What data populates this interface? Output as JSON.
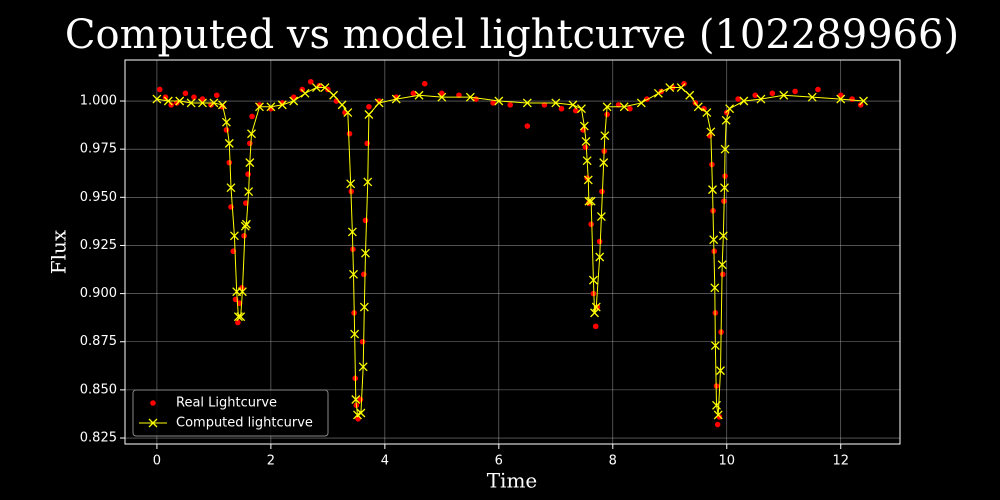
{
  "chart_data": {
    "type": "line",
    "title": "Computed vs model lightcurve (102289966)",
    "xlabel": "Time",
    "ylabel": "Flux",
    "xlim": [
      -0.56,
      13.04
    ],
    "ylim": [
      0.8219,
      1.0213
    ],
    "xticks": [
      0,
      2,
      4,
      6,
      8,
      10,
      12
    ],
    "yticks": [
      0.825,
      {
        "value": 0.85,
        "label": "0.850"
      },
      0.875,
      {
        "value": 0.9,
        "label": "0.900"
      },
      0.925,
      {
        "value": 0.95,
        "label": "0.950"
      },
      0.975,
      {
        "value": 1.0,
        "label": "1.000"
      }
    ],
    "grid": true,
    "legend": "lower left",
    "series": [
      {
        "name": "Real Lightcurve",
        "color": "#ff0000",
        "mode": "markers",
        "x": [
          0.05,
          0.15,
          0.25,
          0.35,
          0.5,
          0.65,
          0.8,
          0.95,
          1.05,
          1.15,
          1.22,
          1.27,
          1.3,
          1.34,
          1.38,
          1.42,
          1.45,
          1.49,
          1.53,
          1.56,
          1.6,
          1.63,
          1.67,
          1.8,
          2.0,
          2.2,
          2.4,
          2.55,
          2.7,
          2.85,
          3.0,
          3.15,
          3.3,
          3.38,
          3.41,
          3.44,
          3.46,
          3.48,
          3.5,
          3.53,
          3.57,
          3.61,
          3.63,
          3.66,
          3.69,
          3.72,
          3.9,
          4.2,
          4.5,
          4.7,
          5.0,
          5.3,
          5.6,
          5.9,
          6.2,
          6.5,
          6.8,
          7.1,
          7.35,
          7.48,
          7.52,
          7.55,
          7.58,
          7.62,
          7.66,
          7.7,
          7.73,
          7.77,
          7.81,
          7.85,
          7.9,
          8.1,
          8.3,
          8.6,
          8.85,
          9.05,
          9.25,
          9.45,
          9.6,
          9.7,
          9.74,
          9.76,
          9.78,
          9.8,
          9.82,
          9.84,
          9.87,
          9.9,
          9.93,
          9.95,
          9.97,
          10.0,
          10.2,
          10.5,
          10.8,
          11.2,
          11.6,
          12.0,
          12.2,
          12.35
        ],
        "values": [
          1.006,
          1.002,
          0.998,
          0.999,
          1.004,
          1.002,
          1.001,
          0.998,
          1.003,
          0.997,
          0.985,
          0.968,
          0.945,
          0.922,
          0.897,
          0.885,
          0.895,
          0.903,
          0.93,
          0.947,
          0.962,
          0.978,
          0.992,
          0.998,
          0.996,
          0.999,
          1.002,
          1.006,
          1.01,
          1.008,
          1.006,
          1.0,
          0.994,
          0.983,
          0.953,
          0.923,
          0.89,
          0.856,
          0.842,
          0.835,
          0.845,
          0.875,
          0.91,
          0.938,
          0.978,
          0.997,
          1.0,
          1.002,
          1.004,
          1.009,
          1.004,
          1.003,
          1.001,
          0.999,
          0.998,
          0.987,
          0.998,
          0.996,
          0.995,
          0.985,
          0.976,
          0.96,
          0.947,
          0.936,
          0.9,
          0.883,
          0.893,
          0.927,
          0.953,
          0.974,
          0.993,
          0.998,
          0.996,
          1.001,
          1.005,
          1.007,
          1.009,
          0.999,
          0.996,
          0.982,
          0.967,
          0.943,
          0.922,
          0.89,
          0.852,
          0.832,
          0.836,
          0.88,
          0.91,
          0.948,
          0.961,
          0.994,
          1.001,
          1.003,
          1.004,
          1.005,
          1.006,
          1.003,
          1.001,
          0.998
        ]
      },
      {
        "name": "Computed lightcurve",
        "color": "#ffff00",
        "mode": "lines+markers",
        "x": [
          0.0,
          0.2,
          0.4,
          0.6,
          0.8,
          1.0,
          1.15,
          1.22,
          1.27,
          1.3,
          1.36,
          1.4,
          1.43,
          1.47,
          1.5,
          1.55,
          1.57,
          1.61,
          1.63,
          1.66,
          1.8,
          2.0,
          2.2,
          2.4,
          2.6,
          2.8,
          2.95,
          3.1,
          3.25,
          3.35,
          3.4,
          3.43,
          3.45,
          3.47,
          3.49,
          3.52,
          3.58,
          3.62,
          3.64,
          3.66,
          3.7,
          3.72,
          3.9,
          4.2,
          4.6,
          5.0,
          5.5,
          6.0,
          6.5,
          7.0,
          7.3,
          7.45,
          7.5,
          7.53,
          7.55,
          7.57,
          7.58,
          7.62,
          7.66,
          7.68,
          7.71,
          7.77,
          7.8,
          7.84,
          7.86,
          7.9,
          8.2,
          8.5,
          8.8,
          9.0,
          9.2,
          9.35,
          9.5,
          9.65,
          9.72,
          9.75,
          9.77,
          9.79,
          9.8,
          9.82,
          9.85,
          9.89,
          9.92,
          9.94,
          9.96,
          9.97,
          9.99,
          10.05,
          10.3,
          10.6,
          11.0,
          11.5,
          12.0,
          12.4
        ],
        "values": [
          1.001,
          1.0,
          1.0,
          0.999,
          0.999,
          0.999,
          0.998,
          0.989,
          0.978,
          0.955,
          0.93,
          0.901,
          0.888,
          0.888,
          0.901,
          0.935,
          0.936,
          0.953,
          0.968,
          0.983,
          0.997,
          0.997,
          0.998,
          1.0,
          1.004,
          1.007,
          1.007,
          1.003,
          0.998,
          0.994,
          0.957,
          0.932,
          0.91,
          0.879,
          0.845,
          0.837,
          0.838,
          0.862,
          0.893,
          0.921,
          0.958,
          0.993,
          0.999,
          1.001,
          1.003,
          1.002,
          1.002,
          1.0,
          0.999,
          0.999,
          0.998,
          0.996,
          0.987,
          0.979,
          0.969,
          0.959,
          0.948,
          0.948,
          0.907,
          0.89,
          0.893,
          0.919,
          0.94,
          0.968,
          0.982,
          0.997,
          0.997,
          0.999,
          1.004,
          1.007,
          1.007,
          1.003,
          0.997,
          0.994,
          0.984,
          0.954,
          0.928,
          0.903,
          0.873,
          0.842,
          0.837,
          0.86,
          0.915,
          0.93,
          0.955,
          0.975,
          0.99,
          0.996,
          1.0,
          1.001,
          1.003,
          1.002,
          1.001,
          1.0
        ]
      }
    ]
  }
}
